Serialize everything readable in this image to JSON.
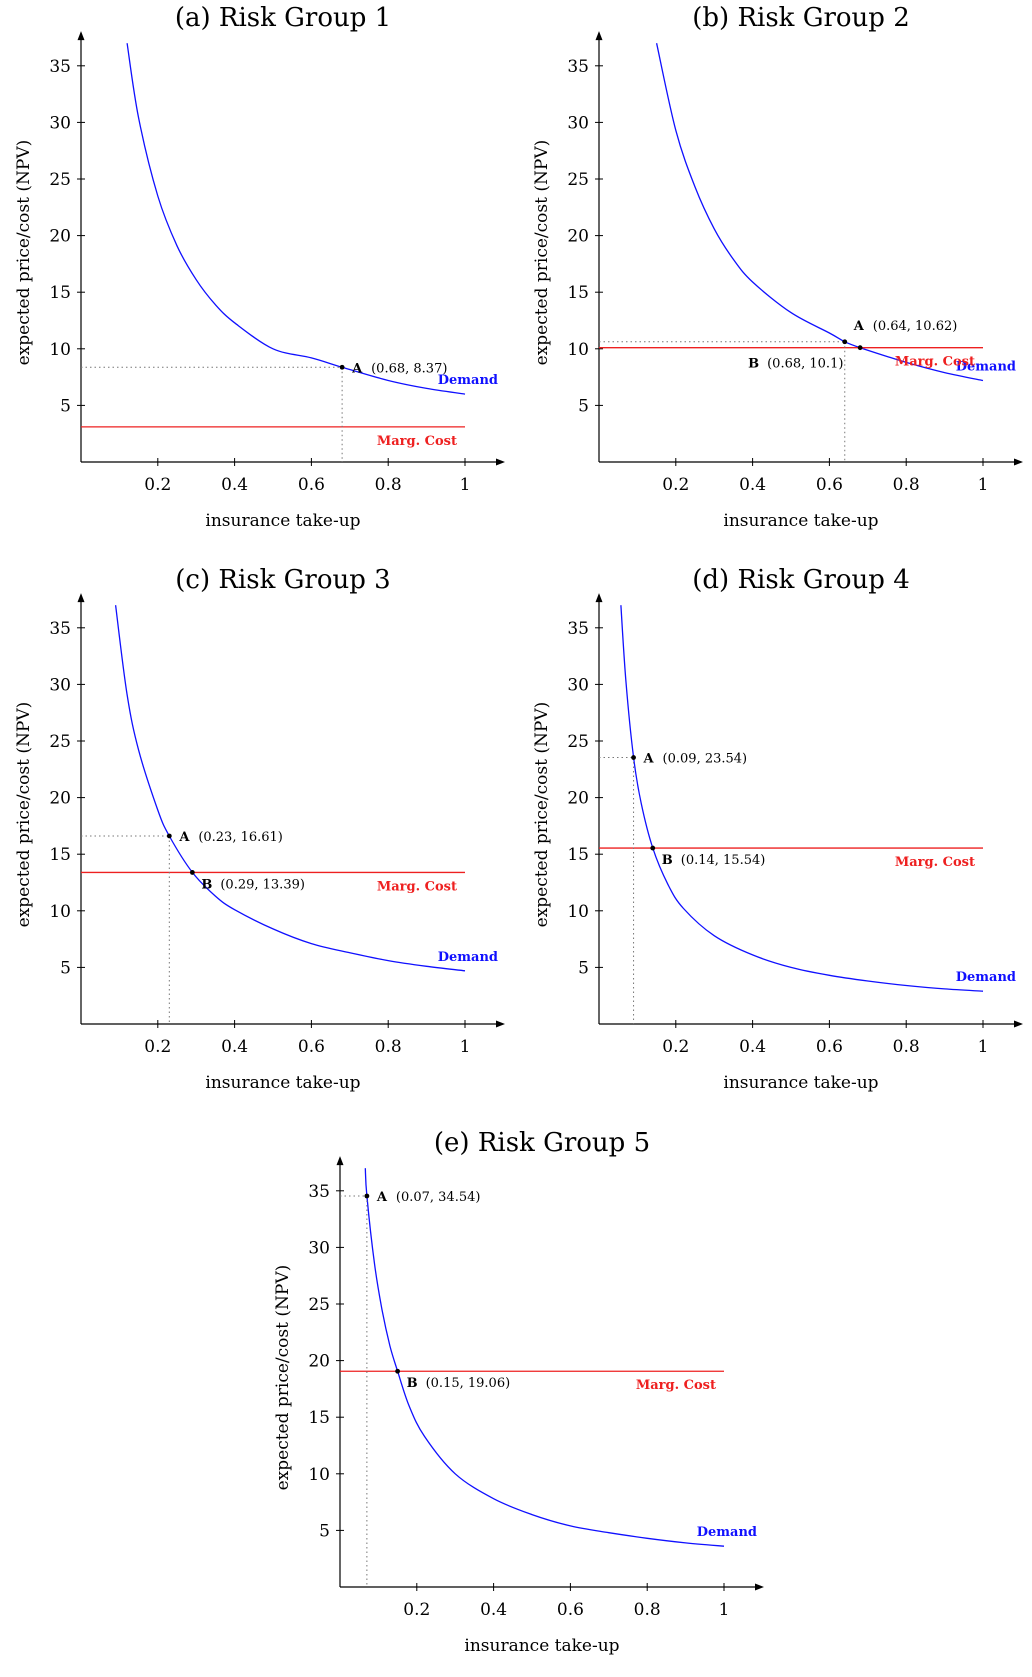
{
  "colors": {
    "demand": "#1010ff",
    "cost": "#ee2020",
    "axis": "#000000",
    "guide": "#777777"
  },
  "chart_data": [
    {
      "type": "line",
      "title": "(a) Risk Group 1",
      "xlabel": "insurance take-up",
      "ylabel": "expected price/cost (NPV)",
      "xlim": [
        0,
        1
      ],
      "ylim": [
        0,
        37
      ],
      "xticks": [
        0.2,
        0.4,
        0.6,
        0.8,
        1
      ],
      "xtick_labels": [
        "0.2",
        "0.4",
        "0.6",
        "0.8",
        "1"
      ],
      "yticks": [
        5,
        10,
        15,
        20,
        25,
        30,
        35
      ],
      "ytick_labels": [
        "5",
        "10",
        "15",
        "20",
        "25",
        "30",
        "35"
      ],
      "series": [
        {
          "name": "Demand",
          "kind": "demand",
          "x": [
            0.12,
            0.15,
            0.2,
            0.25,
            0.3,
            0.35,
            0.4,
            0.5,
            0.6,
            0.68,
            0.8,
            0.9,
            1.0
          ],
          "y": [
            37,
            30.4,
            23.5,
            19.1,
            16.1,
            13.9,
            12.3,
            10.0,
            9.2,
            8.37,
            7.2,
            6.5,
            6.0
          ]
        },
        {
          "name": "Marg. Cost",
          "kind": "cost",
          "x": [
            0,
            1
          ],
          "y": [
            3.1,
            3.1
          ]
        }
      ],
      "points": [
        {
          "name": "A",
          "label": "(0.68, 8.37)",
          "x": 0.68,
          "y": 8.37,
          "guides": true
        }
      ]
    },
    {
      "type": "line",
      "title": "(b) Risk Group 2",
      "xlabel": "insurance take-up",
      "ylabel": "expected price/cost (NPV)",
      "xlim": [
        0,
        1
      ],
      "ylim": [
        0,
        37
      ],
      "xticks": [
        0.2,
        0.4,
        0.6,
        0.8,
        1
      ],
      "xtick_labels": [
        "0.2",
        "0.4",
        "0.6",
        "0.8",
        "1"
      ],
      "yticks": [
        5,
        10,
        15,
        20,
        25,
        30,
        35
      ],
      "ytick_labels": [
        "5",
        "10",
        "15",
        "20",
        "25",
        "30",
        "35"
      ],
      "series": [
        {
          "name": "Demand",
          "kind": "demand",
          "x": [
            0.15,
            0.2,
            0.25,
            0.3,
            0.35,
            0.4,
            0.5,
            0.6,
            0.64,
            0.68,
            0.8,
            0.9,
            1.0
          ],
          "y": [
            37,
            29.3,
            24.3,
            20.6,
            17.9,
            15.9,
            13.2,
            11.4,
            10.62,
            10.1,
            8.8,
            7.9,
            7.2
          ]
        },
        {
          "name": "Marg. Cost",
          "kind": "cost",
          "x": [
            0,
            1
          ],
          "y": [
            10.1,
            10.1
          ]
        }
      ],
      "points": [
        {
          "name": "A",
          "label": "(0.64, 10.62)",
          "x": 0.64,
          "y": 10.62,
          "guides": true
        },
        {
          "name": "B",
          "label": "(0.68, 10.1)",
          "x": 0.68,
          "y": 10.1,
          "guides": false
        }
      ]
    },
    {
      "type": "line",
      "title": "(c) Risk Group 3",
      "xlabel": "insurance take-up",
      "ylabel": "expected price/cost (NPV)",
      "xlim": [
        0,
        1
      ],
      "ylim": [
        0,
        37
      ],
      "xticks": [
        0.2,
        0.4,
        0.6,
        0.8,
        1
      ],
      "xtick_labels": [
        "0.2",
        "0.4",
        "0.6",
        "0.8",
        "1"
      ],
      "yticks": [
        5,
        10,
        15,
        20,
        25,
        30,
        35
      ],
      "ytick_labels": [
        "5",
        "10",
        "15",
        "20",
        "25",
        "30",
        "35"
      ],
      "series": [
        {
          "name": "Demand",
          "kind": "demand",
          "x": [
            0.09,
            0.12,
            0.15,
            0.2,
            0.23,
            0.29,
            0.35,
            0.4,
            0.5,
            0.6,
            0.7,
            0.8,
            0.9,
            1.0
          ],
          "y": [
            37,
            29.1,
            24.2,
            18.9,
            16.61,
            13.39,
            11.3,
            10.1,
            8.4,
            7.1,
            6.3,
            5.6,
            5.1,
            4.7
          ]
        },
        {
          "name": "Marg. Cost",
          "kind": "cost",
          "x": [
            0,
            1
          ],
          "y": [
            13.39,
            13.39
          ]
        }
      ],
      "points": [
        {
          "name": "A",
          "label": "(0.23, 16.61)",
          "x": 0.23,
          "y": 16.61,
          "guides": true
        },
        {
          "name": "B",
          "label": "(0.29, 13.39)",
          "x": 0.29,
          "y": 13.39,
          "guides": false
        }
      ]
    },
    {
      "type": "line",
      "title": "(d) Risk Group 4",
      "xlabel": "insurance take-up",
      "ylabel": "expected price/cost (NPV)",
      "xlim": [
        0,
        1
      ],
      "ylim": [
        0,
        37
      ],
      "xticks": [
        0.2,
        0.4,
        0.6,
        0.8,
        1
      ],
      "xtick_labels": [
        "0.2",
        "0.4",
        "0.6",
        "0.8",
        "1"
      ],
      "yticks": [
        5,
        10,
        15,
        20,
        25,
        30,
        35
      ],
      "ytick_labels": [
        "5",
        "10",
        "15",
        "20",
        "25",
        "30",
        "35"
      ],
      "series": [
        {
          "name": "Demand",
          "kind": "demand",
          "x": [
            0.057,
            0.07,
            0.09,
            0.11,
            0.14,
            0.18,
            0.22,
            0.3,
            0.4,
            0.5,
            0.6,
            0.7,
            0.8,
            0.9,
            1.0
          ],
          "y": [
            37,
            30.3,
            23.54,
            19.5,
            15.54,
            12.3,
            10.2,
            7.8,
            6.1,
            5.0,
            4.3,
            3.8,
            3.4,
            3.1,
            2.9
          ]
        },
        {
          "name": "Marg. Cost",
          "kind": "cost",
          "x": [
            0,
            1
          ],
          "y": [
            15.54,
            15.54
          ]
        }
      ],
      "points": [
        {
          "name": "A",
          "label": "(0.09, 23.54)",
          "x": 0.09,
          "y": 23.54,
          "guides": true
        },
        {
          "name": "B",
          "label": "(0.14, 15.54)",
          "x": 0.14,
          "y": 15.54,
          "guides": false
        }
      ]
    },
    {
      "type": "line",
      "title": "(e) Risk Group 5",
      "xlabel": "insurance take-up",
      "ylabel": "expected price/cost (NPV)",
      "xlim": [
        0,
        1
      ],
      "ylim": [
        0,
        37
      ],
      "xticks": [
        0.2,
        0.4,
        0.6,
        0.8,
        1
      ],
      "xtick_labels": [
        "0.2",
        "0.4",
        "0.6",
        "0.8",
        "1"
      ],
      "yticks": [
        5,
        10,
        15,
        20,
        25,
        30,
        35
      ],
      "ytick_labels": [
        "5",
        "10",
        "15",
        "20",
        "25",
        "30",
        "35"
      ],
      "series": [
        {
          "name": "Demand",
          "kind": "demand",
          "x": [
            0.066,
            0.07,
            0.09,
            0.11,
            0.13,
            0.15,
            0.18,
            0.22,
            0.3,
            0.4,
            0.5,
            0.6,
            0.7,
            0.8,
            0.9,
            1.0
          ],
          "y": [
            37,
            34.54,
            28.5,
            24.4,
            21.3,
            19.06,
            16.0,
            13.3,
            10.0,
            7.8,
            6.4,
            5.4,
            4.8,
            4.3,
            3.9,
            3.6
          ]
        },
        {
          "name": "Marg. Cost",
          "kind": "cost",
          "x": [
            0,
            1
          ],
          "y": [
            19.06,
            19.06
          ]
        }
      ],
      "points": [
        {
          "name": "A",
          "label": "(0.07, 34.54)",
          "x": 0.07,
          "y": 34.54,
          "guides": true
        },
        {
          "name": "B",
          "label": "(0.15, 19.06)",
          "x": 0.15,
          "y": 19.06,
          "guides": false
        }
      ]
    }
  ]
}
